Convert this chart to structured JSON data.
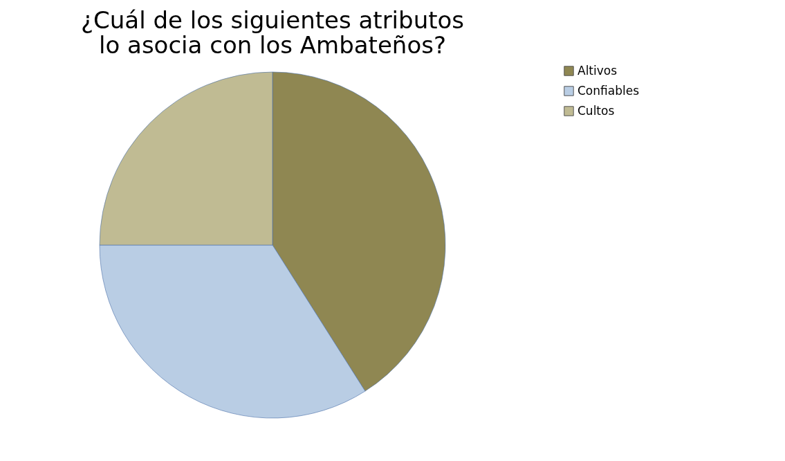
{
  "chart_data": {
    "type": "pie",
    "title": "¿Cuál de los siguientes atributos lo asocia con los Ambateños?",
    "categories": [
      "Altivos",
      "Confiables",
      "Cultos"
    ],
    "values": [
      41,
      34,
      25
    ],
    "colors": [
      "#8f8752",
      "#b9cde4",
      "#c0bb93"
    ],
    "legend": "right"
  }
}
